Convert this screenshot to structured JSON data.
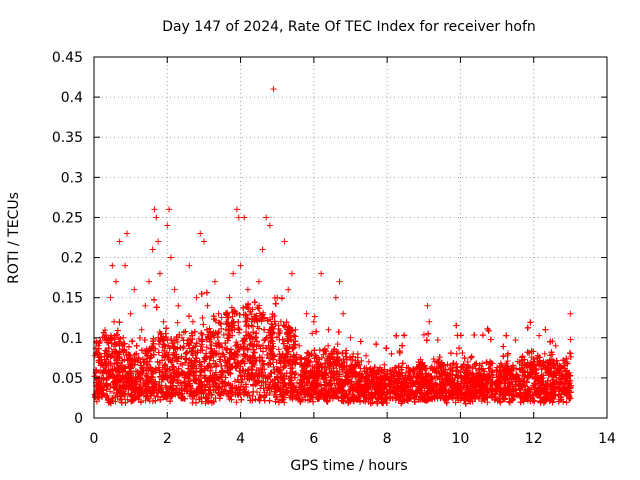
{
  "chart_data": {
    "type": "scatter",
    "title": "Day 147 of 2024, Rate Of TEC Index for receiver hofn",
    "xlabel": "GPS time / hours",
    "ylabel": "ROTI / TECUs",
    "xlim": [
      0,
      14
    ],
    "ylim": [
      0,
      0.45
    ],
    "x_ticks": [
      0,
      2,
      4,
      6,
      8,
      10,
      12,
      14
    ],
    "x_tick_labels": [
      "0",
      "2",
      "4",
      "6",
      "8",
      "10",
      "12",
      "14"
    ],
    "y_ticks": [
      0,
      0.05,
      0.1,
      0.15,
      0.2,
      0.25,
      0.3,
      0.35,
      0.4,
      0.45
    ],
    "y_tick_labels": [
      "0",
      "0.05",
      "0.1",
      "0.15",
      "0.2",
      "0.25",
      "0.3",
      "0.35",
      "0.4",
      "0.45"
    ],
    "grid": true,
    "marker": "+",
    "series": [
      {
        "name": "ROTI",
        "color": "#ff0000",
        "points": [
          [
            0.05,
            0.06
          ],
          [
            0.12,
            0.09
          ],
          [
            0.2,
            0.05
          ],
          [
            0.3,
            0.1
          ],
          [
            0.4,
            0.07
          ],
          [
            0.45,
            0.15
          ],
          [
            0.5,
            0.19
          ],
          [
            0.55,
            0.12
          ],
          [
            0.6,
            0.17
          ],
          [
            0.65,
            0.08
          ],
          [
            0.7,
            0.22
          ],
          [
            0.8,
            0.1
          ],
          [
            0.85,
            0.19
          ],
          [
            0.9,
            0.23
          ],
          [
            1.0,
            0.13
          ],
          [
            1.1,
            0.16
          ],
          [
            1.2,
            0.07
          ],
          [
            1.3,
            0.11
          ],
          [
            1.4,
            0.14
          ],
          [
            1.5,
            0.17
          ],
          [
            1.6,
            0.21
          ],
          [
            1.65,
            0.26
          ],
          [
            1.7,
            0.25
          ],
          [
            1.75,
            0.22
          ],
          [
            1.8,
            0.18
          ],
          [
            1.9,
            0.12
          ],
          [
            2.0,
            0.24
          ],
          [
            2.05,
            0.26
          ],
          [
            2.1,
            0.2
          ],
          [
            2.2,
            0.16
          ],
          [
            2.3,
            0.14
          ],
          [
            2.4,
            0.1
          ],
          [
            2.5,
            0.08
          ],
          [
            2.6,
            0.19
          ],
          [
            2.7,
            0.12
          ],
          [
            2.8,
            0.15
          ],
          [
            2.9,
            0.23
          ],
          [
            3.0,
            0.22
          ],
          [
            3.1,
            0.14
          ],
          [
            3.2,
            0.1
          ],
          [
            3.3,
            0.17
          ],
          [
            3.4,
            0.13
          ],
          [
            3.5,
            0.08
          ],
          [
            3.6,
            0.11
          ],
          [
            3.7,
            0.15
          ],
          [
            3.8,
            0.18
          ],
          [
            3.9,
            0.26
          ],
          [
            3.95,
            0.25
          ],
          [
            4.0,
            0.19
          ],
          [
            4.1,
            0.25
          ],
          [
            4.2,
            0.16
          ],
          [
            4.3,
            0.12
          ],
          [
            4.4,
            0.1
          ],
          [
            4.5,
            0.17
          ],
          [
            4.6,
            0.21
          ],
          [
            4.7,
            0.25
          ],
          [
            4.8,
            0.24
          ],
          [
            4.9,
            0.41
          ],
          [
            5.0,
            0.15
          ],
          [
            5.1,
            0.12
          ],
          [
            5.2,
            0.22
          ],
          [
            5.3,
            0.16
          ],
          [
            5.4,
            0.18
          ],
          [
            5.5,
            0.11
          ],
          [
            5.6,
            0.09
          ],
          [
            5.8,
            0.13
          ],
          [
            6.0,
            0.12
          ],
          [
            6.2,
            0.18
          ],
          [
            6.4,
            0.11
          ],
          [
            6.6,
            0.15
          ],
          [
            6.7,
            0.17
          ],
          [
            6.8,
            0.13
          ],
          [
            7.0,
            0.1
          ],
          [
            7.2,
            0.08
          ],
          [
            7.5,
            0.07
          ],
          [
            7.8,
            0.06
          ],
          [
            8.0,
            0.05
          ],
          [
            8.3,
            0.04
          ],
          [
            8.6,
            0.05
          ],
          [
            8.9,
            0.06
          ],
          [
            9.1,
            0.14
          ],
          [
            9.15,
            0.12
          ],
          [
            9.3,
            0.07
          ],
          [
            9.6,
            0.06
          ],
          [
            9.9,
            0.08
          ],
          [
            10.2,
            0.07
          ],
          [
            10.5,
            0.06
          ],
          [
            10.8,
            0.05
          ],
          [
            11.1,
            0.06
          ],
          [
            11.4,
            0.05
          ],
          [
            11.7,
            0.06
          ],
          [
            12.0,
            0.07
          ],
          [
            12.3,
            0.08
          ],
          [
            12.6,
            0.09
          ],
          [
            12.9,
            0.07
          ],
          [
            13.0,
            0.13
          ]
        ],
        "cloud_count": 9000
      }
    ]
  }
}
